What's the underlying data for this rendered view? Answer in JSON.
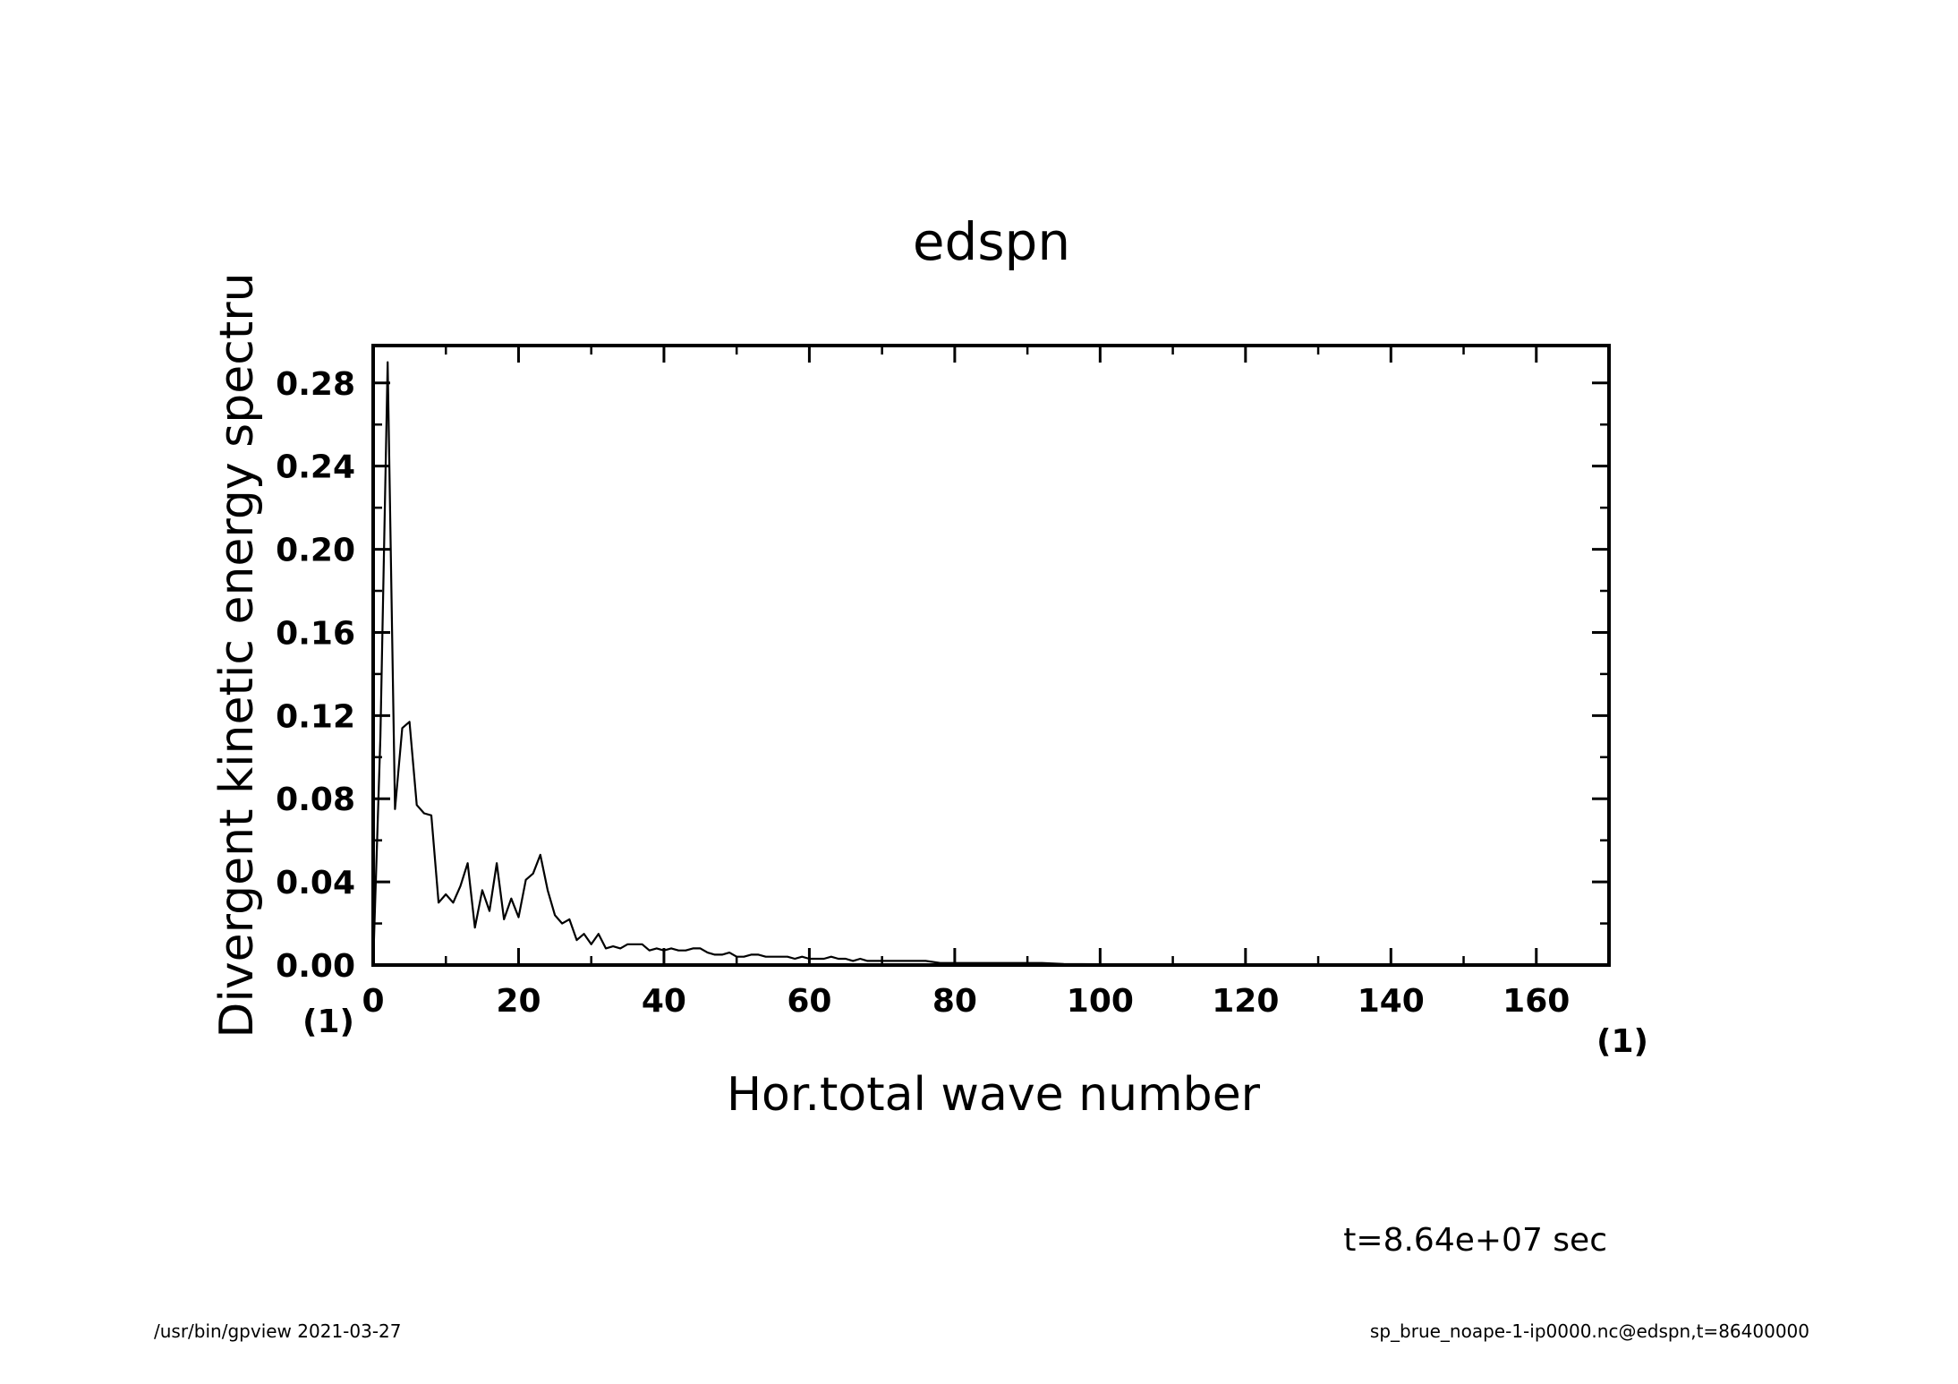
{
  "chart_data": {
    "type": "line",
    "title": "edspn",
    "xlabel": "Hor.total wave number",
    "ylabel": "Divergent kinetic energy spectru",
    "x_unit": "(1)",
    "y_unit": "(1)",
    "xlim": [
      0,
      170
    ],
    "ylim": [
      0,
      0.298
    ],
    "x_ticks": [
      "0",
      "20",
      "40",
      "60",
      "80",
      "100",
      "120",
      "140",
      "160"
    ],
    "x_tick_values": [
      0,
      20,
      40,
      60,
      80,
      100,
      120,
      140,
      160
    ],
    "y_ticks": [
      "0.00",
      "0.04",
      "0.08",
      "0.12",
      "0.16",
      "0.20",
      "0.24",
      "0.28"
    ],
    "y_tick_values": [
      0,
      0.04,
      0.08,
      0.12,
      0.16,
      0.2,
      0.24,
      0.28
    ],
    "series": [
      {
        "name": "edspn",
        "x": [
          0,
          1,
          2,
          3,
          4,
          5,
          6,
          7,
          8,
          9,
          10,
          11,
          12,
          13,
          14,
          15,
          16,
          17,
          18,
          19,
          20,
          21,
          22,
          23,
          24,
          25,
          26,
          27,
          28,
          29,
          30,
          31,
          32,
          33,
          34,
          35,
          36,
          37,
          38,
          39,
          40,
          41,
          42,
          43,
          44,
          45,
          46,
          47,
          48,
          49,
          50,
          51,
          52,
          53,
          54,
          55,
          56,
          57,
          58,
          59,
          60,
          61,
          62,
          63,
          64,
          65,
          66,
          67,
          68,
          69,
          70,
          72,
          74,
          76,
          78,
          80,
          82,
          84,
          86,
          88,
          90,
          92,
          95,
          100,
          110,
          120,
          130,
          140,
          150,
          160,
          170
        ],
        "values": [
          0.0,
          0.11,
          0.29,
          0.075,
          0.114,
          0.117,
          0.077,
          0.073,
          0.072,
          0.03,
          0.034,
          0.03,
          0.038,
          0.049,
          0.018,
          0.036,
          0.026,
          0.049,
          0.022,
          0.032,
          0.023,
          0.041,
          0.044,
          0.053,
          0.036,
          0.024,
          0.02,
          0.022,
          0.012,
          0.015,
          0.01,
          0.015,
          0.008,
          0.009,
          0.008,
          0.01,
          0.01,
          0.01,
          0.007,
          0.008,
          0.007,
          0.008,
          0.007,
          0.007,
          0.008,
          0.008,
          0.006,
          0.005,
          0.005,
          0.006,
          0.004,
          0.004,
          0.005,
          0.005,
          0.004,
          0.004,
          0.004,
          0.004,
          0.003,
          0.004,
          0.003,
          0.003,
          0.003,
          0.004,
          0.003,
          0.003,
          0.002,
          0.003,
          0.002,
          0.002,
          0.002,
          0.002,
          0.002,
          0.002,
          0.001,
          0.001,
          0.001,
          0.001,
          0.001,
          0.001,
          0.001,
          0.001,
          0.0005,
          0.0004,
          0.0002,
          0.0001,
          0.0001,
          0.0,
          0.0,
          0.0,
          0.0
        ]
      }
    ]
  },
  "annotations": {
    "time": "t=8.64e+07 sec",
    "footer_left": "/usr/bin/gpview   2021-03-27",
    "footer_right": "sp_brue_noape-1-ip0000.nc@edspn,t=86400000"
  }
}
